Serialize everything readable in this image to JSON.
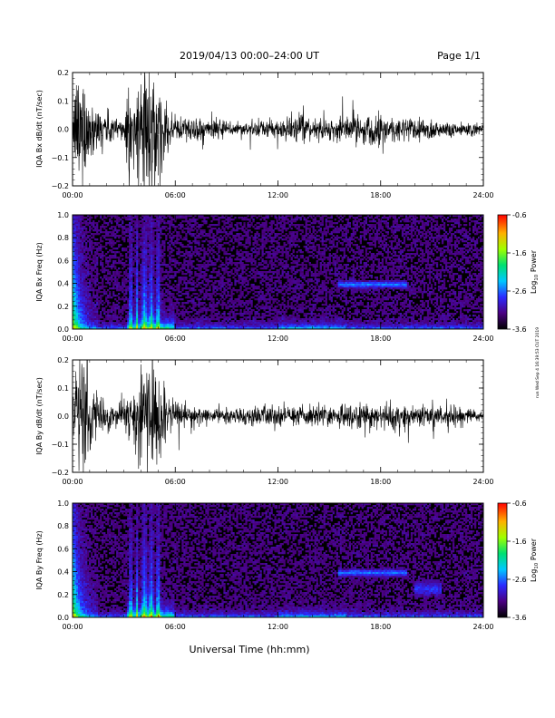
{
  "header": {
    "title": "2019/04/13  00:00–24:00 UT",
    "page": "Page 1/1"
  },
  "side_note": "run Wed Sep 4 16:39:53 CUT 2019",
  "xlabel": "Universal Time (hh:mm)",
  "colorbar": {
    "label_prefix": "Log",
    "label_sub": "10",
    "label_suffix": " Power",
    "ticks": [
      "-0.6",
      "-1.6",
      "-2.6",
      "-3.6"
    ],
    "range": [
      -3.6,
      -0.6
    ]
  },
  "chart_data": [
    {
      "type": "line",
      "ylabel": "IQA Bx dB/dt (nT/sec)",
      "xlim": [
        "00:00",
        "24:00"
      ],
      "ylim": [
        -0.2,
        0.2
      ],
      "x_ticks": [
        "00:00",
        "06:00",
        "12:00",
        "18:00",
        "24:00"
      ],
      "y_ticks": [
        "0.2",
        "0.1",
        "0.0",
        "−0.1",
        "−0.2"
      ],
      "amplitude_envelope": {
        "x_hours": [
          0,
          0.3,
          0.6,
          0.9,
          1.2,
          1.6,
          2.0,
          2.5,
          3.0,
          3.3,
          3.5,
          3.7,
          4.0,
          4.5,
          5.2,
          5.5,
          6.0,
          7.0,
          8.0,
          9.0,
          10.0,
          11.0,
          12.0,
          13.0,
          14.0,
          15.0,
          16.0,
          17.0,
          18.0,
          19.0,
          20.0,
          21.0,
          22.0,
          23.0,
          24.0
        ],
        "amp": [
          0.05,
          0.25,
          0.25,
          0.12,
          0.1,
          0.08,
          0.07,
          0.05,
          0.05,
          0.25,
          0.05,
          0.12,
          0.25,
          0.25,
          0.15,
          0.08,
          0.05,
          0.05,
          0.04,
          0.03,
          0.03,
          0.03,
          0.04,
          0.05,
          0.04,
          0.04,
          0.05,
          0.06,
          0.06,
          0.05,
          0.05,
          0.04,
          0.03,
          0.03,
          0.02
        ]
      }
    },
    {
      "type": "heatmap",
      "ylabel": "IQA Bx Freq (Hz)",
      "xlim": [
        "00:00",
        "24:00"
      ],
      "ylim": [
        0.0,
        1.0
      ],
      "x_ticks": [
        "00:00",
        "06:00",
        "12:00",
        "18:00",
        "24:00"
      ],
      "y_ticks": [
        "1.0",
        "0.8",
        "0.6",
        "0.4",
        "0.2",
        "0.0"
      ],
      "zlabel": "Log10 Power",
      "zlim": [
        -3.6,
        -0.6
      ]
    },
    {
      "type": "line",
      "ylabel": "IQA By dB/dt (nT/sec)",
      "xlim": [
        "00:00",
        "24:00"
      ],
      "ylim": [
        -0.2,
        0.2
      ],
      "x_ticks": [
        "00:00",
        "06:00",
        "12:00",
        "18:00",
        "24:00"
      ],
      "y_ticks": [
        "0.2",
        "0.1",
        "0.0",
        "−0.1",
        "−0.2"
      ],
      "amplitude_envelope": {
        "x_hours": [
          0,
          0.3,
          0.6,
          0.9,
          1.2,
          1.6,
          2.0,
          2.5,
          3.0,
          3.3,
          3.5,
          3.7,
          4.0,
          4.5,
          5.2,
          5.5,
          6.0,
          7.0,
          8.0,
          9.0,
          10.0,
          11.0,
          12.0,
          13.0,
          14.0,
          15.0,
          16.0,
          17.0,
          18.0,
          19.0,
          20.0,
          21.0,
          22.0,
          23.0,
          24.0
        ],
        "amp": [
          0.05,
          0.25,
          0.25,
          0.15,
          0.1,
          0.08,
          0.06,
          0.04,
          0.05,
          0.1,
          0.05,
          0.15,
          0.25,
          0.25,
          0.15,
          0.07,
          0.05,
          0.04,
          0.03,
          0.03,
          0.03,
          0.04,
          0.04,
          0.04,
          0.04,
          0.04,
          0.05,
          0.05,
          0.05,
          0.05,
          0.05,
          0.04,
          0.04,
          0.03,
          0.02
        ]
      }
    },
    {
      "type": "heatmap",
      "ylabel": "IQA By Freq (Hz)",
      "xlim": [
        "00:00",
        "24:00"
      ],
      "ylim": [
        0.0,
        1.0
      ],
      "x_ticks": [
        "00:00",
        "06:00",
        "12:00",
        "18:00",
        "24:00"
      ],
      "y_ticks": [
        "1.0",
        "0.8",
        "0.6",
        "0.4",
        "0.2",
        "0.0"
      ],
      "zlabel": "Log10 Power",
      "zlim": [
        -3.6,
        -0.6
      ]
    }
  ]
}
